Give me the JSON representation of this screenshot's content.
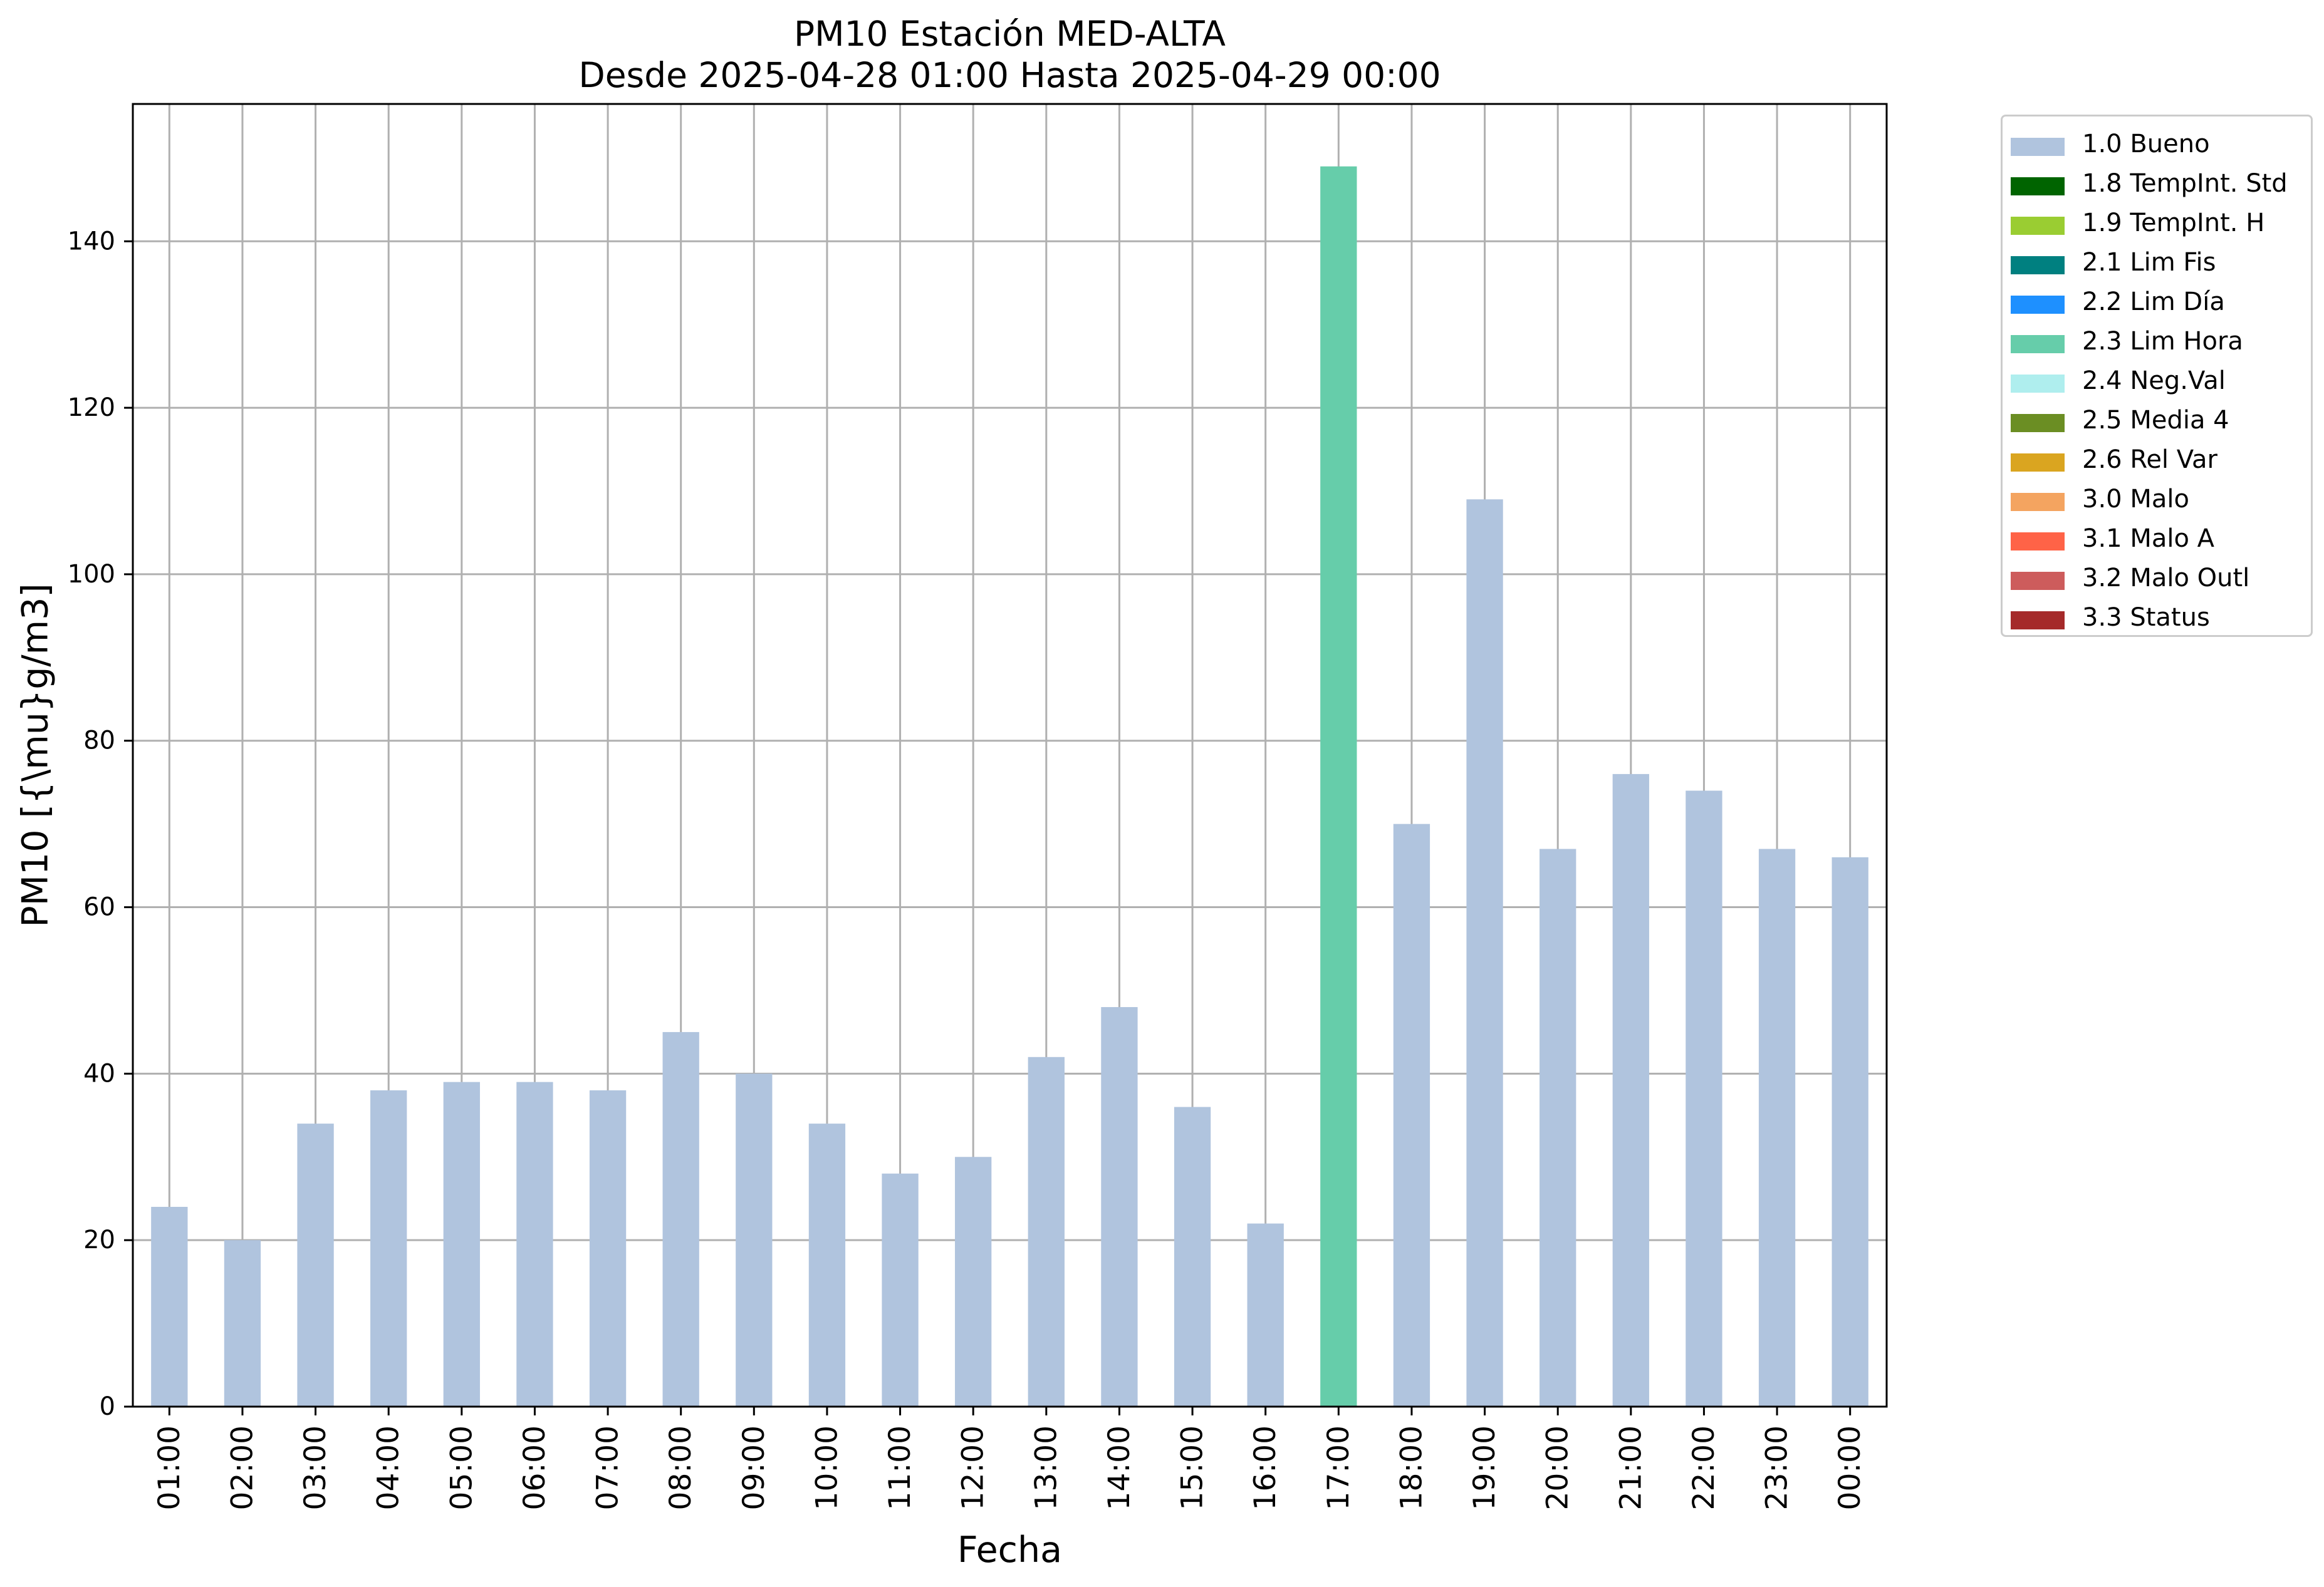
{
  "chart_data": {
    "type": "bar",
    "title": [
      "PM10 Estación MED-ALTA",
      "Desde 2025-04-28 01:00 Hasta 2025-04-29 00:00"
    ],
    "xlabel": "Fecha",
    "ylabel": "PM10 [{\\mu}g/m3]",
    "ylim": [
      0,
      156.5
    ],
    "yticks": [
      0,
      20,
      40,
      60,
      80,
      100,
      120,
      140
    ],
    "grid": true,
    "legend_position": "outside-top-right",
    "categories": [
      "01:00",
      "02:00",
      "03:00",
      "04:00",
      "05:00",
      "06:00",
      "07:00",
      "08:00",
      "09:00",
      "10:00",
      "11:00",
      "12:00",
      "13:00",
      "14:00",
      "15:00",
      "16:00",
      "17:00",
      "18:00",
      "19:00",
      "20:00",
      "21:00",
      "22:00",
      "23:00",
      "00:00"
    ],
    "values": [
      24,
      20,
      34,
      38,
      39,
      39,
      38,
      45,
      40,
      34,
      28,
      30,
      42,
      48,
      36,
      22,
      149,
      70,
      109,
      67,
      76,
      74,
      67,
      66
    ],
    "flags": [
      "1.0 Bueno",
      "1.0 Bueno",
      "1.0 Bueno",
      "1.0 Bueno",
      "1.0 Bueno",
      "1.0 Bueno",
      "1.0 Bueno",
      "1.0 Bueno",
      "1.0 Bueno",
      "1.0 Bueno",
      "1.0 Bueno",
      "1.0 Bueno",
      "1.0 Bueno",
      "1.0 Bueno",
      "1.0 Bueno",
      "1.0 Bueno",
      "2.3 Lim Hora",
      "1.0 Bueno",
      "1.0 Bueno",
      "1.0 Bueno",
      "1.0 Bueno",
      "1.0 Bueno",
      "1.0 Bueno",
      "1.0 Bueno"
    ],
    "legend": [
      {
        "label": "1.0 Bueno",
        "color": "#b0c4de"
      },
      {
        "label": "1.8 TempInt. Std",
        "color": "#006400"
      },
      {
        "label": "1.9 TempInt. H",
        "color": "#9acd32"
      },
      {
        "label": "2.1 Lim Fis",
        "color": "#008080"
      },
      {
        "label": "2.2 Lim Día",
        "color": "#1e90ff"
      },
      {
        "label": "2.3 Lim Hora",
        "color": "#66cdaa"
      },
      {
        "label": "2.4 Neg.Val",
        "color": "#afeeee"
      },
      {
        "label": "2.5 Media 4",
        "color": "#6b8e23"
      },
      {
        "label": "2.6 Rel Var",
        "color": "#daa520"
      },
      {
        "label": "3.0 Malo",
        "color": "#f4a460"
      },
      {
        "label": "3.1 Malo A",
        "color": "#ff6347"
      },
      {
        "label": "3.2 Malo Outl",
        "color": "#cd5c5c"
      },
      {
        "label": "3.3 Status",
        "color": "#a52a2a"
      }
    ]
  }
}
